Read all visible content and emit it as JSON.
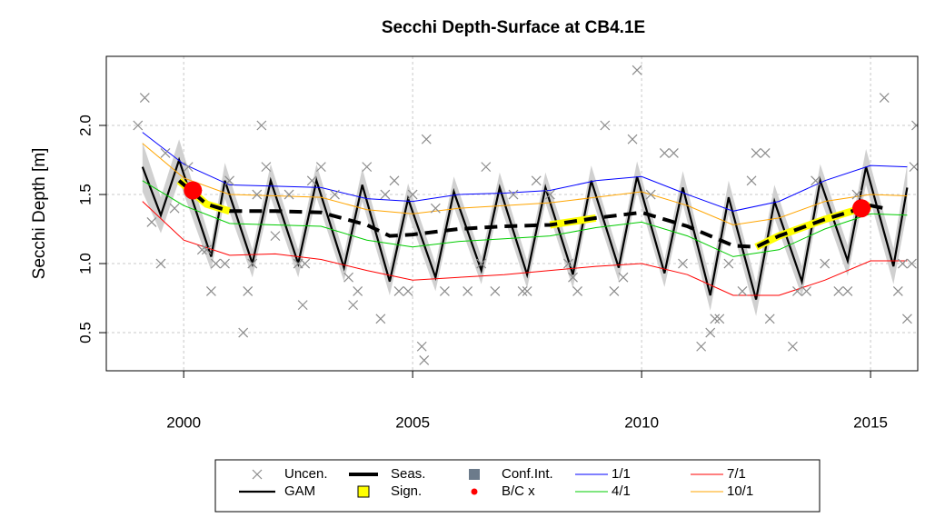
{
  "chart_data": {
    "type": "line",
    "title": "Secchi Depth-Surface at CB4.1E",
    "ylabel": "Secchi Depth [m]",
    "xlim": [
      1998.31,
      2016.03
    ],
    "ylim": [
      0.224,
      2.5
    ],
    "xticks": [
      2000,
      2005,
      2010,
      2015
    ],
    "yticks": [
      0.5,
      {
        "value": 1,
        "label": "1.0"
      },
      1.5,
      {
        "value": 2,
        "label": "2.0"
      }
    ],
    "grid": true,
    "series": [
      {
        "name": "Uncen.",
        "type": "scatter",
        "color": "#8c8c8c",
        "x": [
          1999.0,
          1999.15,
          1999.3,
          1999.5,
          1999.6,
          1999.8,
          2000.1,
          2000.3,
          2000.4,
          2000.5,
          2000.6,
          2000.7,
          2000.9,
          2001.0,
          2001.3,
          2001.4,
          2001.5,
          2001.6,
          2001.7,
          2001.8,
          2002.0,
          2002.3,
          2002.5,
          2002.6,
          2002.65,
          2002.8,
          2003.0,
          2003.3,
          2003.6,
          2003.7,
          2003.8,
          2004.0,
          2004.3,
          2004.4,
          2004.6,
          2004.7,
          2004.9,
          2005.0,
          2005.2,
          2005.25,
          2005.3,
          2005.5,
          2005.7,
          2006.2,
          2006.5,
          2006.6,
          2006.8,
          2007.2,
          2007.4,
          2007.5,
          2007.7,
          2008.0,
          2008.4,
          2008.5,
          2008.6,
          2009.2,
          2009.4,
          2009.6,
          2009.8,
          2009.9,
          2010.2,
          2010.5,
          2010.7,
          2010.9,
          2011.3,
          2011.5,
          2011.6,
          2011.7,
          2011.9,
          2012.2,
          2012.4,
          2012.5,
          2012.7,
          2012.8,
          2013.3,
          2013.4,
          2013.6,
          2013.8,
          2014.0,
          2014.3,
          2014.5,
          2014.7,
          2015.3,
          2015.6,
          2015.7,
          2015.8,
          2015.9,
          2016.0,
          2015.95
        ],
        "values": [
          2.0,
          2.2,
          1.3,
          1.0,
          1.8,
          1.4,
          1.7,
          1.5,
          1.1,
          1.1,
          0.8,
          1.0,
          1.0,
          1.6,
          0.5,
          0.8,
          1.0,
          1.5,
          2.0,
          1.7,
          1.2,
          1.5,
          1.0,
          0.7,
          1.0,
          1.6,
          1.7,
          1.5,
          0.9,
          0.7,
          0.8,
          1.7,
          0.6,
          1.5,
          1.6,
          0.8,
          0.8,
          1.5,
          0.4,
          0.3,
          1.9,
          1.4,
          0.8,
          0.8,
          1.0,
          1.7,
          0.8,
          1.5,
          0.8,
          0.8,
          1.6,
          1.5,
          1.0,
          0.9,
          0.8,
          2.0,
          0.8,
          0.9,
          1.9,
          2.4,
          1.5,
          1.8,
          1.8,
          1.0,
          0.4,
          0.5,
          0.6,
          0.6,
          1.0,
          0.8,
          1.6,
          1.8,
          1.8,
          0.6,
          0.4,
          0.8,
          0.8,
          1.6,
          1.0,
          0.8,
          0.8,
          1.5,
          2.2,
          0.8,
          1.0,
          0.6,
          1.0,
          2.0,
          1.7
        ]
      },
      {
        "name": "GAM",
        "type": "line",
        "color": "#000000",
        "x": [
          1999.1,
          1999.5,
          1999.9,
          2000.6,
          2000.9,
          2001.5,
          2001.9,
          2002.5,
          2002.9,
          2003.5,
          2003.9,
          2004.5,
          2004.9,
          2005.5,
          2005.9,
          2006.5,
          2006.9,
          2007.5,
          2007.9,
          2008.5,
          2008.9,
          2009.5,
          2009.9,
          2010.5,
          2010.9,
          2011.5,
          2011.9,
          2012.5,
          2012.9,
          2013.5,
          2013.9,
          2014.5,
          2014.9,
          2015.5,
          2015.8
        ],
        "values": [
          1.7,
          1.35,
          1.75,
          1.05,
          1.6,
          1.0,
          1.6,
          1.0,
          1.6,
          0.97,
          1.57,
          0.87,
          1.47,
          0.9,
          1.52,
          0.95,
          1.55,
          0.92,
          1.55,
          0.92,
          1.6,
          0.97,
          1.63,
          0.93,
          1.55,
          0.77,
          1.48,
          0.74,
          1.45,
          0.87,
          1.6,
          1.02,
          1.7,
          0.98,
          1.55
        ]
      },
      {
        "name": "Seas.",
        "type": "dashed",
        "color": "#000000",
        "x": [
          1999.9,
          2000.5,
          2001,
          2002,
          2003,
          2004,
          2004.5,
          2005,
          2006,
          2007,
          2008,
          2009,
          2010,
          2011,
          2012,
          2012.5,
          2013,
          2014,
          2015,
          2015.3
        ],
        "values": [
          1.6,
          1.43,
          1.38,
          1.38,
          1.37,
          1.28,
          1.2,
          1.21,
          1.25,
          1.27,
          1.28,
          1.33,
          1.37,
          1.27,
          1.13,
          1.12,
          1.2,
          1.32,
          1.42,
          1.4
        ]
      },
      {
        "name": "Sign.",
        "type": "highlight",
        "color": "#ffff00",
        "x": [
          1999.9,
          2000.5,
          2001,
          2002,
          2003,
          2004,
          2004.5,
          2005,
          2006,
          2007,
          2008,
          2009,
          2010,
          2011,
          2012,
          2012.5,
          2013,
          2014,
          2015,
          2015.3
        ],
        "values": [
          1.6,
          1.43,
          1.38,
          null,
          null,
          null,
          null,
          null,
          null,
          null,
          1.28,
          1.33,
          null,
          null,
          null,
          1.12,
          1.2,
          1.32,
          1.42,
          null
        ]
      },
      {
        "name": "Conf.Int.",
        "type": "band",
        "color": "#d0d0d0",
        "legend_color": "#6c7b8b",
        "x": [
          1999.1,
          1999.5,
          1999.9,
          2000.6,
          2000.9,
          2001.5,
          2001.9,
          2002.5,
          2002.9,
          2003.5,
          2003.9,
          2004.5,
          2004.9,
          2005.5,
          2005.9,
          2006.5,
          2006.9,
          2007.5,
          2007.9,
          2008.5,
          2008.9,
          2009.5,
          2009.9,
          2010.5,
          2010.9,
          2011.5,
          2011.9,
          2012.5,
          2012.9,
          2013.5,
          2013.9,
          2014.5,
          2014.9,
          2015.5,
          2015.8
        ],
        "lower": [
          1.52,
          1.22,
          1.6,
          0.95,
          1.47,
          0.9,
          1.48,
          0.9,
          1.48,
          0.87,
          1.45,
          0.77,
          1.36,
          0.8,
          1.41,
          0.85,
          1.44,
          0.82,
          1.44,
          0.82,
          1.49,
          0.87,
          1.52,
          0.83,
          1.43,
          0.66,
          1.36,
          0.62,
          1.33,
          0.76,
          1.48,
          0.91,
          1.57,
          0.85,
          1.38
        ],
        "upper": [
          1.88,
          1.48,
          1.9,
          1.15,
          1.73,
          1.1,
          1.72,
          1.1,
          1.72,
          1.07,
          1.69,
          0.97,
          1.58,
          1.0,
          1.63,
          1.05,
          1.66,
          1.02,
          1.66,
          1.02,
          1.71,
          1.07,
          1.74,
          1.03,
          1.67,
          0.88,
          1.6,
          0.86,
          1.57,
          0.98,
          1.72,
          1.13,
          1.83,
          1.11,
          1.72
        ]
      },
      {
        "name": "B/C x",
        "type": "points",
        "color": "#ff0000",
        "x": [
          2000.2,
          2014.8
        ],
        "values": [
          1.53,
          1.4
        ]
      },
      {
        "name": "1/1",
        "type": "line",
        "color": "#0000ff",
        "x": [
          1999.1,
          2000,
          2001,
          2002,
          2003,
          2004,
          2005,
          2006,
          2007,
          2008,
          2009,
          2010,
          2011,
          2012,
          2013,
          2014,
          2015,
          2015.8
        ],
        "values": [
          1.95,
          1.72,
          1.57,
          1.56,
          1.55,
          1.47,
          1.45,
          1.5,
          1.51,
          1.53,
          1.6,
          1.63,
          1.5,
          1.38,
          1.45,
          1.6,
          1.71,
          1.7
        ]
      },
      {
        "name": "4/1",
        "type": "line",
        "color": "#00cc00",
        "x": [
          1999.1,
          2000,
          2001,
          2002,
          2003,
          2004,
          2005,
          2006,
          2007,
          2008,
          2009,
          2010,
          2011,
          2012,
          2013,
          2014,
          2015,
          2015.8
        ],
        "values": [
          1.6,
          1.42,
          1.29,
          1.28,
          1.27,
          1.17,
          1.12,
          1.16,
          1.18,
          1.2,
          1.26,
          1.3,
          1.2,
          1.05,
          1.1,
          1.25,
          1.36,
          1.35
        ]
      },
      {
        "name": "7/1",
        "type": "line",
        "color": "#ff0000",
        "x": [
          1999.1,
          2000,
          2001,
          2002,
          2003,
          2004,
          2005,
          2006,
          2007,
          2008,
          2009,
          2010,
          2011,
          2012,
          2013,
          2014,
          2015,
          2015.8
        ],
        "values": [
          1.45,
          1.17,
          1.06,
          1.07,
          1.03,
          0.95,
          0.88,
          0.9,
          0.92,
          0.95,
          0.98,
          1.0,
          0.92,
          0.77,
          0.77,
          0.88,
          1.02,
          1.02
        ]
      },
      {
        "name": "10/1",
        "type": "line",
        "color": "#ffa500",
        "x": [
          1999.1,
          2000,
          2001,
          2002,
          2003,
          2004,
          2005,
          2006,
          2007,
          2008,
          2009,
          2010,
          2011,
          2012,
          2013,
          2014,
          2015,
          2015.8
        ],
        "values": [
          1.87,
          1.62,
          1.5,
          1.49,
          1.48,
          1.39,
          1.36,
          1.4,
          1.42,
          1.44,
          1.48,
          1.52,
          1.42,
          1.28,
          1.33,
          1.45,
          1.5,
          1.49
        ]
      }
    ]
  }
}
